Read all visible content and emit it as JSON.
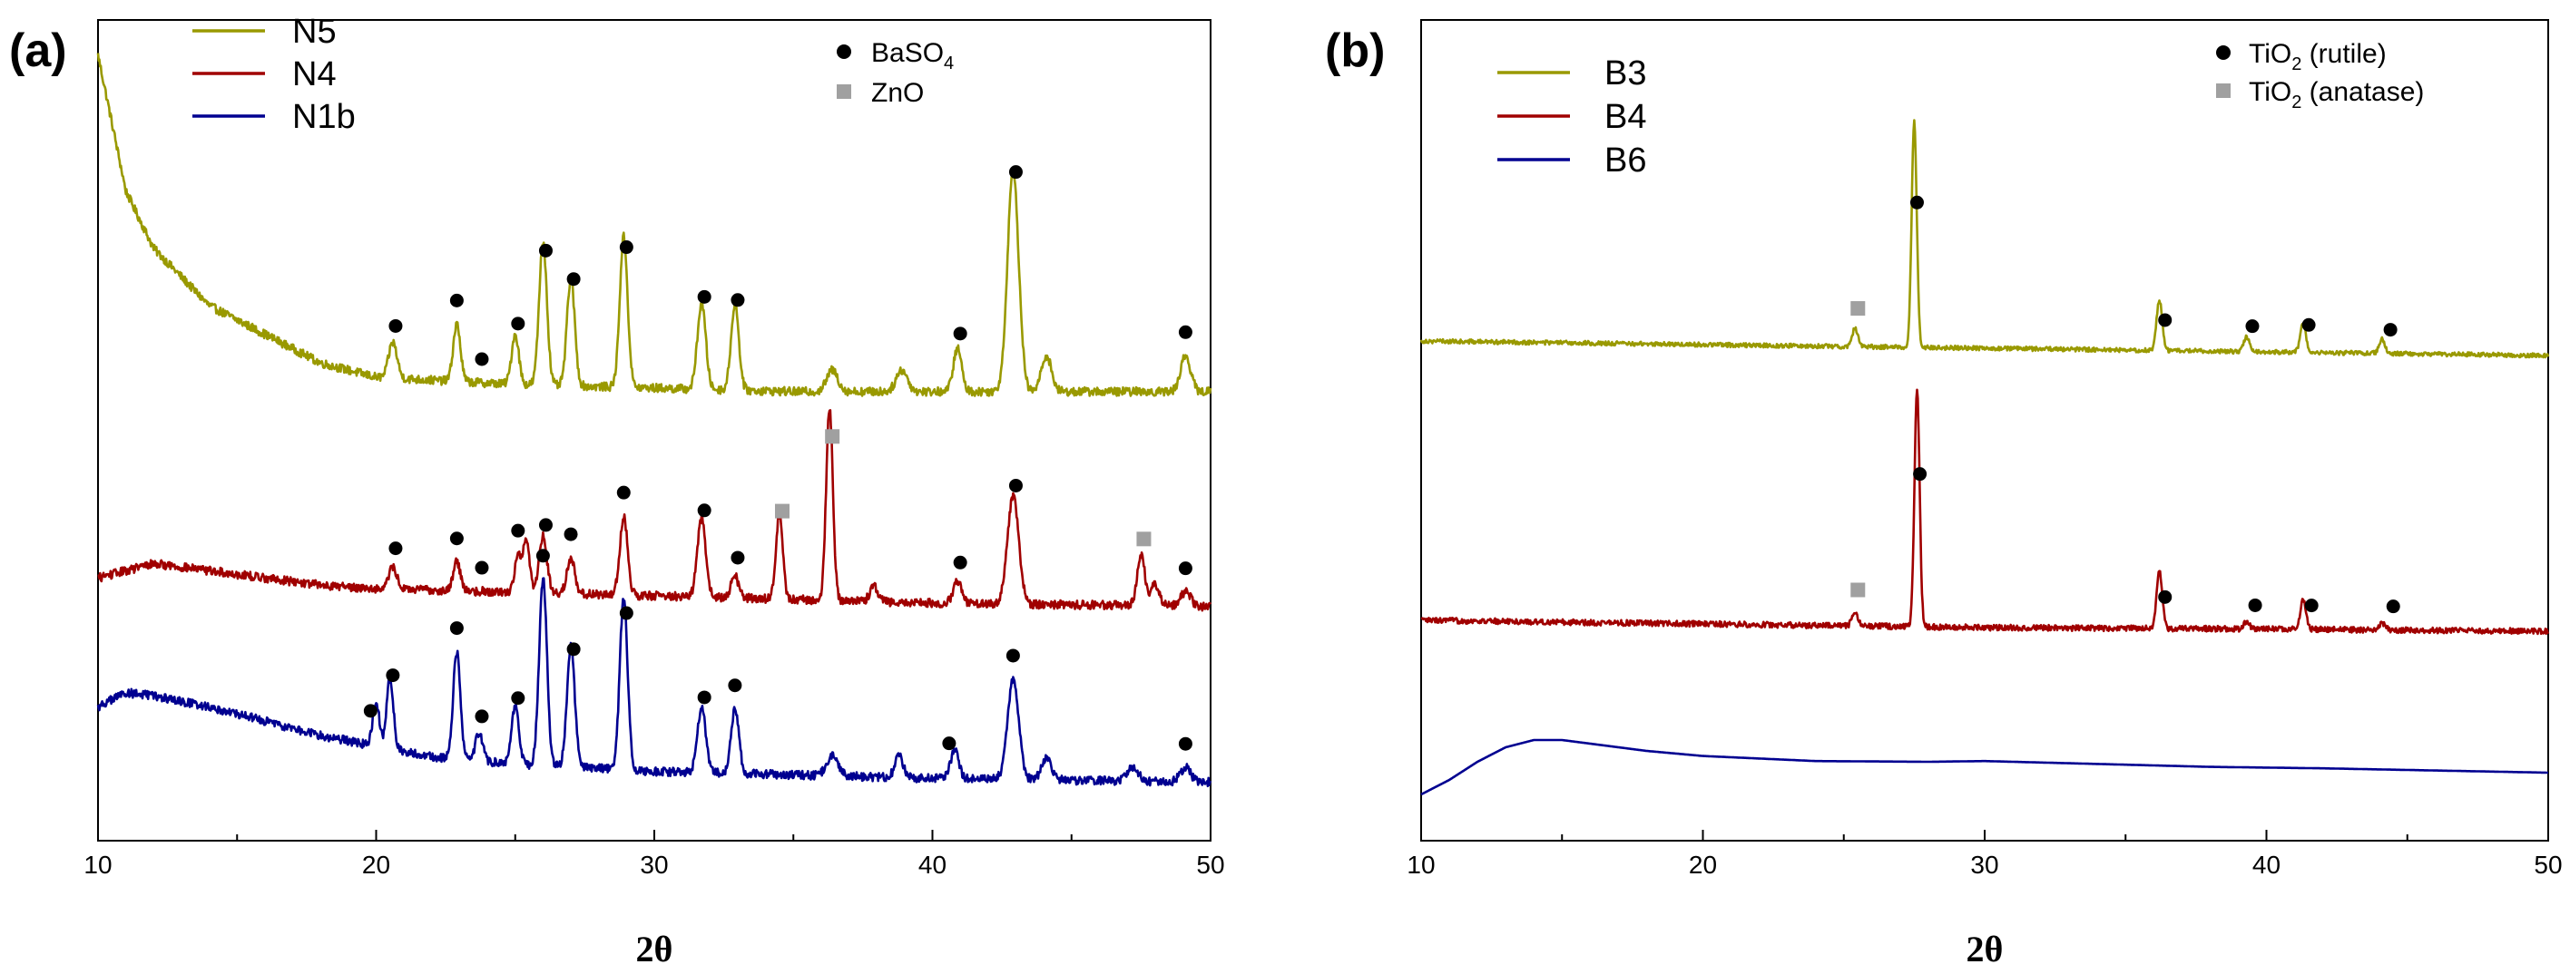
{
  "colors": {
    "olive": "#999900",
    "red": "#a00000",
    "blue": "#000090",
    "circle_marker": "#000000",
    "square_marker": "#a0a0a0"
  },
  "chart_data": [
    {
      "panel": "(a)",
      "type": "line",
      "xlabel": "2θ",
      "ylabel": "",
      "xlim": [
        10,
        50
      ],
      "x_ticks": [
        10,
        20,
        30,
        40,
        50
      ],
      "y_ticks_shown": false,
      "legend": {
        "placement": "top-left",
        "entries": [
          "N5",
          "N4",
          "N1b"
        ]
      },
      "marker_legend": {
        "placement": "top-center",
        "circle": {
          "main": "BaSO",
          "sub": "4",
          "tail": ""
        },
        "square": {
          "main": "ZnO",
          "sub": "",
          "tail": ""
        }
      },
      "series": [
        {
          "name": "N5",
          "color": "olive",
          "baseline": 0.58,
          "noise": 0.006,
          "background": [
            [
              10,
              1.05
            ],
            [
              11,
              0.86
            ],
            [
              12,
              0.78
            ],
            [
              14,
              0.7
            ],
            [
              16,
              0.66
            ],
            [
              18,
              0.62
            ],
            [
              20,
              0.6
            ],
            [
              25,
              0.59
            ],
            [
              30,
              0.585
            ],
            [
              35,
              0.58
            ],
            [
              40,
              0.58
            ],
            [
              50,
              0.58
            ]
          ],
          "peaks": [
            [
              20.6,
              0.05,
              0.15
            ],
            [
              22.9,
              0.08,
              0.13
            ],
            [
              25.0,
              0.07,
              0.13
            ],
            [
              26.0,
              0.2,
              0.14
            ],
            [
              27.0,
              0.15,
              0.14
            ],
            [
              28.9,
              0.21,
              0.14
            ],
            [
              31.7,
              0.12,
              0.15
            ],
            [
              32.9,
              0.12,
              0.14
            ],
            [
              36.4,
              0.03,
              0.2
            ],
            [
              38.9,
              0.03,
              0.2
            ],
            [
              40.9,
              0.06,
              0.15
            ],
            [
              42.9,
              0.31,
              0.2
            ],
            [
              44.1,
              0.05,
              0.18
            ],
            [
              49.1,
              0.05,
              0.18
            ]
          ],
          "circle_markers": [
            20.7,
            22.9,
            23.8,
            25.1,
            26.1,
            27.1,
            29.0,
            31.8,
            33.0,
            41.0,
            43.0,
            49.1
          ],
          "square_markers": []
        },
        {
          "name": "N4",
          "color": "red",
          "baseline": 0.29,
          "noise": 0.006,
          "background": [
            [
              10,
              0.32
            ],
            [
              12,
              0.34
            ],
            [
              14,
              0.33
            ],
            [
              16,
              0.32
            ],
            [
              18,
              0.31
            ],
            [
              20,
              0.305
            ],
            [
              25,
              0.3
            ],
            [
              30,
              0.295
            ],
            [
              35,
              0.29
            ],
            [
              40,
              0.285
            ],
            [
              50,
              0.28
            ]
          ],
          "peaks": [
            [
              20.6,
              0.03,
              0.15
            ],
            [
              22.9,
              0.04,
              0.13
            ],
            [
              25.1,
              0.05,
              0.12
            ],
            [
              25.4,
              0.07,
              0.12
            ],
            [
              26.0,
              0.08,
              0.14
            ],
            [
              27.0,
              0.05,
              0.14
            ],
            [
              28.9,
              0.11,
              0.14
            ],
            [
              31.7,
              0.11,
              0.15
            ],
            [
              32.9,
              0.03,
              0.14
            ],
            [
              34.5,
              0.12,
              0.12
            ],
            [
              36.3,
              0.27,
              0.12
            ],
            [
              37.9,
              0.02,
              0.15
            ],
            [
              40.9,
              0.03,
              0.15
            ],
            [
              42.9,
              0.15,
              0.2
            ],
            [
              47.5,
              0.07,
              0.14
            ],
            [
              48.0,
              0.03,
              0.15
            ],
            [
              49.1,
              0.02,
              0.18
            ]
          ],
          "circle_markers": [
            20.7,
            22.9,
            23.8,
            25.1,
            26.1,
            27.0,
            28.9,
            31.8,
            33.0,
            41.0,
            43.0,
            49.1
          ],
          "square_markers": [
            34.6,
            36.4,
            47.6
          ]
        },
        {
          "name": "N1b",
          "color": "blue",
          "baseline": 0.04,
          "noise": 0.006,
          "background": [
            [
              10,
              0.14
            ],
            [
              11,
              0.16
            ],
            [
              12,
              0.155
            ],
            [
              14,
              0.14
            ],
            [
              16,
              0.12
            ],
            [
              18,
              0.1
            ],
            [
              20,
              0.085
            ],
            [
              22,
              0.07
            ],
            [
              25,
              0.06
            ],
            [
              30,
              0.05
            ],
            [
              35,
              0.045
            ],
            [
              40,
              0.04
            ],
            [
              50,
              0.035
            ]
          ],
          "peaks": [
            [
              20.0,
              0.06,
              0.12
            ],
            [
              20.5,
              0.1,
              0.12
            ],
            [
              22.9,
              0.15,
              0.13
            ],
            [
              23.7,
              0.04,
              0.13
            ],
            [
              25.0,
              0.08,
              0.13
            ],
            [
              26.0,
              0.26,
              0.14
            ],
            [
              27.0,
              0.17,
              0.14
            ],
            [
              28.9,
              0.24,
              0.14
            ],
            [
              31.7,
              0.09,
              0.15
            ],
            [
              32.9,
              0.09,
              0.14
            ],
            [
              36.4,
              0.03,
              0.2
            ],
            [
              38.8,
              0.03,
              0.15
            ],
            [
              40.8,
              0.04,
              0.15
            ],
            [
              42.9,
              0.14,
              0.2
            ],
            [
              44.1,
              0.03,
              0.18
            ],
            [
              47.2,
              0.02,
              0.2
            ],
            [
              49.1,
              0.02,
              0.18
            ]
          ],
          "circle_markers": [
            19.8,
            20.6,
            22.9,
            23.8,
            25.1,
            26.0,
            27.1,
            29.0,
            31.8,
            32.9,
            40.6,
            42.9,
            49.1
          ],
          "square_markers": []
        }
      ]
    },
    {
      "panel": "(b)",
      "type": "line",
      "xlabel": "2θ",
      "ylabel": "",
      "xlim": [
        10,
        50
      ],
      "x_ticks": [
        10,
        20,
        30,
        40,
        50
      ],
      "y_ticks_shown": false,
      "legend": {
        "placement": "top-left",
        "entries": [
          "B3",
          "B4",
          "B6"
        ]
      },
      "marker_legend": {
        "placement": "top-right",
        "circle": {
          "main": "TiO",
          "sub": "2",
          "tail": " (rutile)"
        },
        "square": {
          "main": "TiO",
          "sub": "2",
          "tail": " (anatase)"
        }
      },
      "series": [
        {
          "name": "B3",
          "color": "olive",
          "baseline": 0.64,
          "noise": 0.003,
          "background": [
            [
              10,
              0.655
            ],
            [
              20,
              0.65
            ],
            [
              30,
              0.645
            ],
            [
              40,
              0.64
            ],
            [
              50,
              0.635
            ]
          ],
          "peaks": [
            [
              25.4,
              0.025,
              0.1
            ],
            [
              27.5,
              0.31,
              0.09
            ],
            [
              36.2,
              0.07,
              0.1
            ],
            [
              39.3,
              0.02,
              0.1
            ],
            [
              41.3,
              0.04,
              0.1
            ],
            [
              44.1,
              0.02,
              0.1
            ]
          ],
          "circle_markers": [
            27.6,
            36.4,
            39.5,
            41.5,
            44.4
          ],
          "square_markers": [
            25.5
          ]
        },
        {
          "name": "B4",
          "color": "red",
          "baseline": 0.26,
          "noise": 0.004,
          "background": [
            [
              10,
              0.27
            ],
            [
              20,
              0.265
            ],
            [
              30,
              0.26
            ],
            [
              40,
              0.258
            ],
            [
              50,
              0.255
            ]
          ],
          "peaks": [
            [
              25.4,
              0.02,
              0.1
            ],
            [
              27.6,
              0.33,
              0.09
            ],
            [
              36.2,
              0.08,
              0.1
            ],
            [
              39.3,
              0.01,
              0.1
            ],
            [
              41.3,
              0.04,
              0.1
            ],
            [
              44.1,
              0.01,
              0.1
            ]
          ],
          "circle_markers": [
            27.7,
            36.4,
            39.6,
            41.6,
            44.5
          ],
          "square_markers": [
            25.5
          ]
        },
        {
          "name": "B6",
          "color": "blue",
          "baseline": 0.0,
          "noise": 0.0,
          "background": [
            [
              10,
              0.03
            ],
            [
              11,
              0.05
            ],
            [
              12,
              0.075
            ],
            [
              13,
              0.095
            ],
            [
              14,
              0.105
            ],
            [
              15,
              0.105
            ],
            [
              16,
              0.1
            ],
            [
              18,
              0.09
            ],
            [
              20,
              0.083
            ],
            [
              24,
              0.076
            ],
            [
              28,
              0.075
            ],
            [
              30,
              0.076
            ],
            [
              34,
              0.072
            ],
            [
              38,
              0.068
            ],
            [
              42,
              0.066
            ],
            [
              46,
              0.063
            ],
            [
              50,
              0.06
            ]
          ],
          "peaks": [],
          "circle_markers": [],
          "square_markers": []
        }
      ]
    }
  ]
}
